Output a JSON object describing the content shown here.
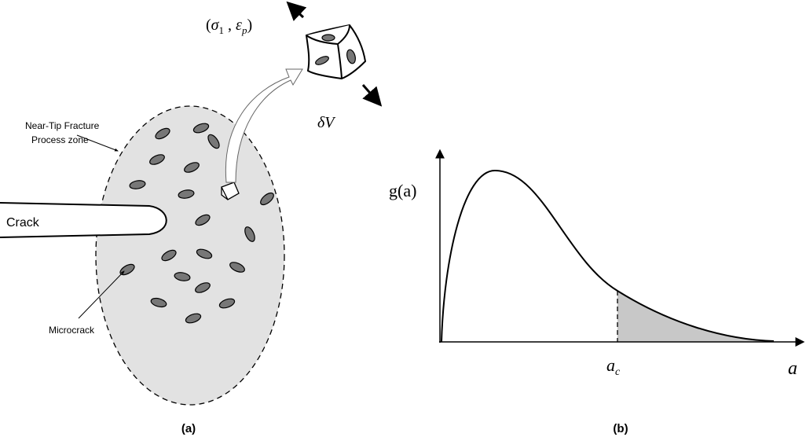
{
  "panel_a": {
    "zone_label": [
      "Near-Tip Fracture",
      "Process zone"
    ],
    "crack_label": "Crack",
    "microcrack_label": "Microcrack",
    "stress_state": {
      "open": "(",
      "sigma": "σ",
      "sigma_sub": "1",
      "sep": " , ",
      "epsilon": "ε",
      "epsilon_sub": "p",
      "close": ")"
    },
    "volume_label": "δV",
    "caption": "(a)"
  },
  "panel_b": {
    "y_label": "g(a)",
    "threshold_label": {
      "base": "a",
      "sub": "c"
    },
    "x_label": "a",
    "caption": "(b)"
  }
}
